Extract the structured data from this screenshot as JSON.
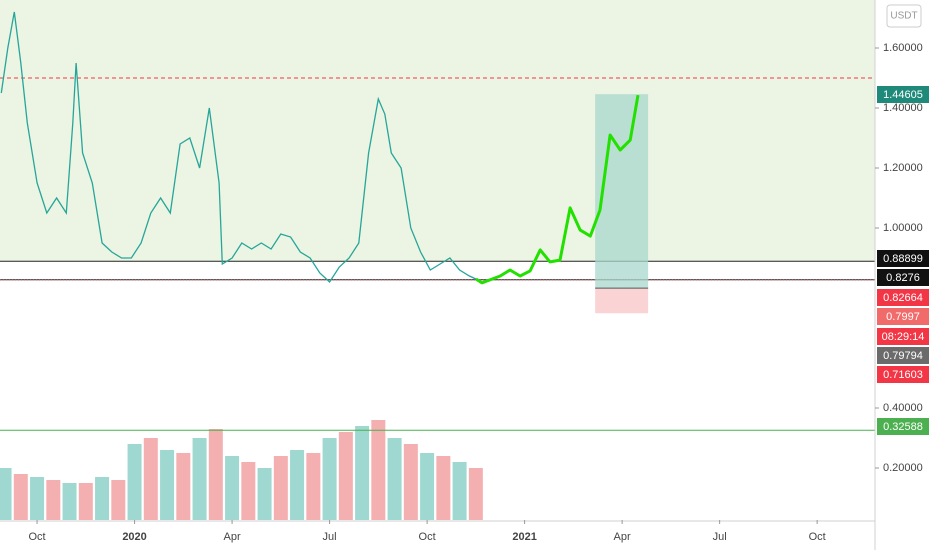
{
  "chart_data": {
    "type": "line",
    "currency": "USDT",
    "xlim": [
      -1.14,
      25.78
    ],
    "ylim": [
      0.0267,
      1.76
    ],
    "xticks": [
      {
        "value": 0,
        "label": "Oct"
      },
      {
        "value": 3,
        "label": "2020"
      },
      {
        "value": 6,
        "label": "Apr"
      },
      {
        "value": 9,
        "label": "Jul"
      },
      {
        "value": 12,
        "label": "Oct"
      },
      {
        "value": 15,
        "label": "2021"
      },
      {
        "value": 18,
        "label": "Apr"
      },
      {
        "value": 21,
        "label": "Jul"
      },
      {
        "value": 24,
        "label": "Oct"
      }
    ],
    "yticks": [
      {
        "value": 1.6,
        "label": "1.60000"
      },
      {
        "value": 1.4,
        "label": "1.40000"
      },
      {
        "value": 1.2,
        "label": "1.20000"
      },
      {
        "value": 1.0,
        "label": "1.00000"
      },
      {
        "value": 0.4,
        "label": "0.40000"
      },
      {
        "value": 0.2,
        "label": "0.20000"
      }
    ],
    "x": [
      -1.1,
      -0.9,
      -0.7,
      -0.5,
      -0.3,
      0,
      0.3,
      0.6,
      0.9,
      1.1,
      1.2,
      1.4,
      1.7,
      2.0,
      2.3,
      2.6,
      2.9,
      3.2,
      3.5,
      3.8,
      4.1,
      4.4,
      4.7,
      5.0,
      5.3,
      5.6,
      5.7,
      6.0,
      6.3,
      6.6,
      6.9,
      7.2,
      7.5,
      7.8,
      8.1,
      8.4,
      8.7,
      9.0,
      9.3,
      9.6,
      9.9,
      10.2,
      10.5,
      10.7,
      10.9,
      11.2,
      11.5,
      11.8,
      12.1,
      12.4,
      12.7,
      13.0,
      13.3,
      13.5
    ],
    "values": [
      1.45,
      1.6,
      1.72,
      1.55,
      1.35,
      1.15,
      1.05,
      1.1,
      1.05,
      1.35,
      1.55,
      1.25,
      1.15,
      0.95,
      0.92,
      0.9,
      0.9,
      0.95,
      1.05,
      1.1,
      1.05,
      1.28,
      1.3,
      1.2,
      1.4,
      1.15,
      0.88,
      0.9,
      0.95,
      0.93,
      0.95,
      0.93,
      0.98,
      0.97,
      0.92,
      0.9,
      0.85,
      0.82,
      0.87,
      0.9,
      0.95,
      1.25,
      1.43,
      1.38,
      1.25,
      1.2,
      1.0,
      0.92,
      0.86,
      0.88,
      0.9,
      0.86,
      0.84,
      0.83
    ],
    "color": "#26a69a",
    "volume": {
      "x": [
        -1,
        -0.5,
        0,
        0.5,
        1,
        1.5,
        2,
        2.5,
        3,
        3.5,
        4,
        4.5,
        5,
        5.5,
        6,
        6.5,
        7,
        7.5,
        8,
        8.5,
        9,
        9.5,
        10,
        10.5,
        11,
        11.5,
        12,
        12.5,
        13,
        13.5
      ],
      "values": [
        0.2,
        0.18,
        0.17,
        0.16,
        0.15,
        0.15,
        0.17,
        0.16,
        0.28,
        0.3,
        0.26,
        0.25,
        0.3,
        0.33,
        0.24,
        0.22,
        0.2,
        0.24,
        0.26,
        0.25,
        0.3,
        0.32,
        0.34,
        0.36,
        0.3,
        0.28,
        0.25,
        0.24,
        0.22,
        0.2
      ],
      "up_color": "#9fd8d0",
      "down_color": "#f4b0b0"
    },
    "zone_top": 0.88899,
    "dashed_level": 1.5,
    "black_levels": [
      0.88899,
      0.8276
    ],
    "green_level": 0.32588,
    "current_level": 0.82664,
    "position": {
      "x": [
        17.17,
        18.8
      ],
      "target": 1.44605,
      "entry": 0.7997,
      "stop": 0.71603
    },
    "projection": {
      "x": [
        13.5,
        13.69,
        14.25,
        14.55,
        14.86,
        15.17,
        15.48,
        15.78,
        16.09,
        16.4,
        16.71,
        17.02,
        17.32,
        17.63,
        17.94,
        18.25,
        18.49
      ],
      "values": [
        0.83,
        0.817,
        0.84,
        0.86,
        0.84,
        0.857,
        0.927,
        0.887,
        0.893,
        1.067,
        0.993,
        0.973,
        1.06,
        1.31,
        1.26,
        1.293,
        1.443
      ],
      "color": "#22e000"
    },
    "price_labels": [
      {
        "value": 1.44605,
        "color": "#1f8a7a"
      },
      {
        "value": 0.88899,
        "color": "#111111"
      },
      {
        "value": 0.8276,
        "color": "#111111"
      },
      {
        "value": 0.82664,
        "color": "#f23645"
      },
      {
        "value": 0.7997,
        "color": "#f26b6b"
      },
      {
        "text": "08:29:14",
        "color": "#f23645"
      },
      {
        "value": 0.79794,
        "color": "#6b6b6b"
      },
      {
        "value": 0.71603,
        "color": "#f23645"
      },
      {
        "value": 0.32588,
        "color": "#4caf50"
      }
    ]
  }
}
